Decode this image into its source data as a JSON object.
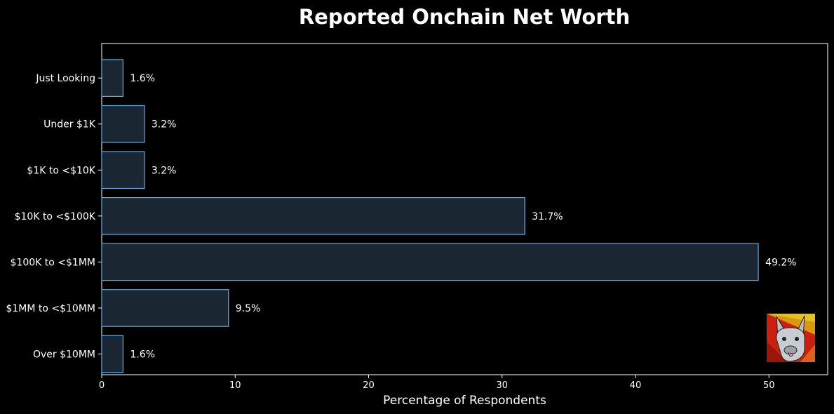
{
  "chart_data": {
    "type": "bar",
    "orientation": "horizontal",
    "title": "Reported Onchain Net Worth",
    "xlabel": "Percentage of Respondents",
    "ylabel": "",
    "categories": [
      "Just Looking",
      "Under $1K",
      "$1K to <$10K",
      "$10K to <$100K",
      "$100K to <$1MM",
      "$1MM to <$10MM",
      "Over $10MM"
    ],
    "values": [
      1.6,
      3.2,
      3.2,
      31.7,
      49.2,
      9.5,
      1.6
    ],
    "value_labels": [
      "1.6%",
      "3.2%",
      "3.2%",
      "31.7%",
      "49.2%",
      "9.5%",
      "1.6%"
    ],
    "xlim": [
      0,
      54.4
    ],
    "xticks": [
      0,
      10,
      20,
      30,
      40,
      50
    ],
    "grid": false,
    "legend": "none",
    "colors": {
      "background": "#000000",
      "bar_fill": "#1b2633",
      "bar_edge": "#5aaee8",
      "axis": "#ffffff",
      "text": "#ffffff"
    },
    "watermark": "llama-logo"
  }
}
